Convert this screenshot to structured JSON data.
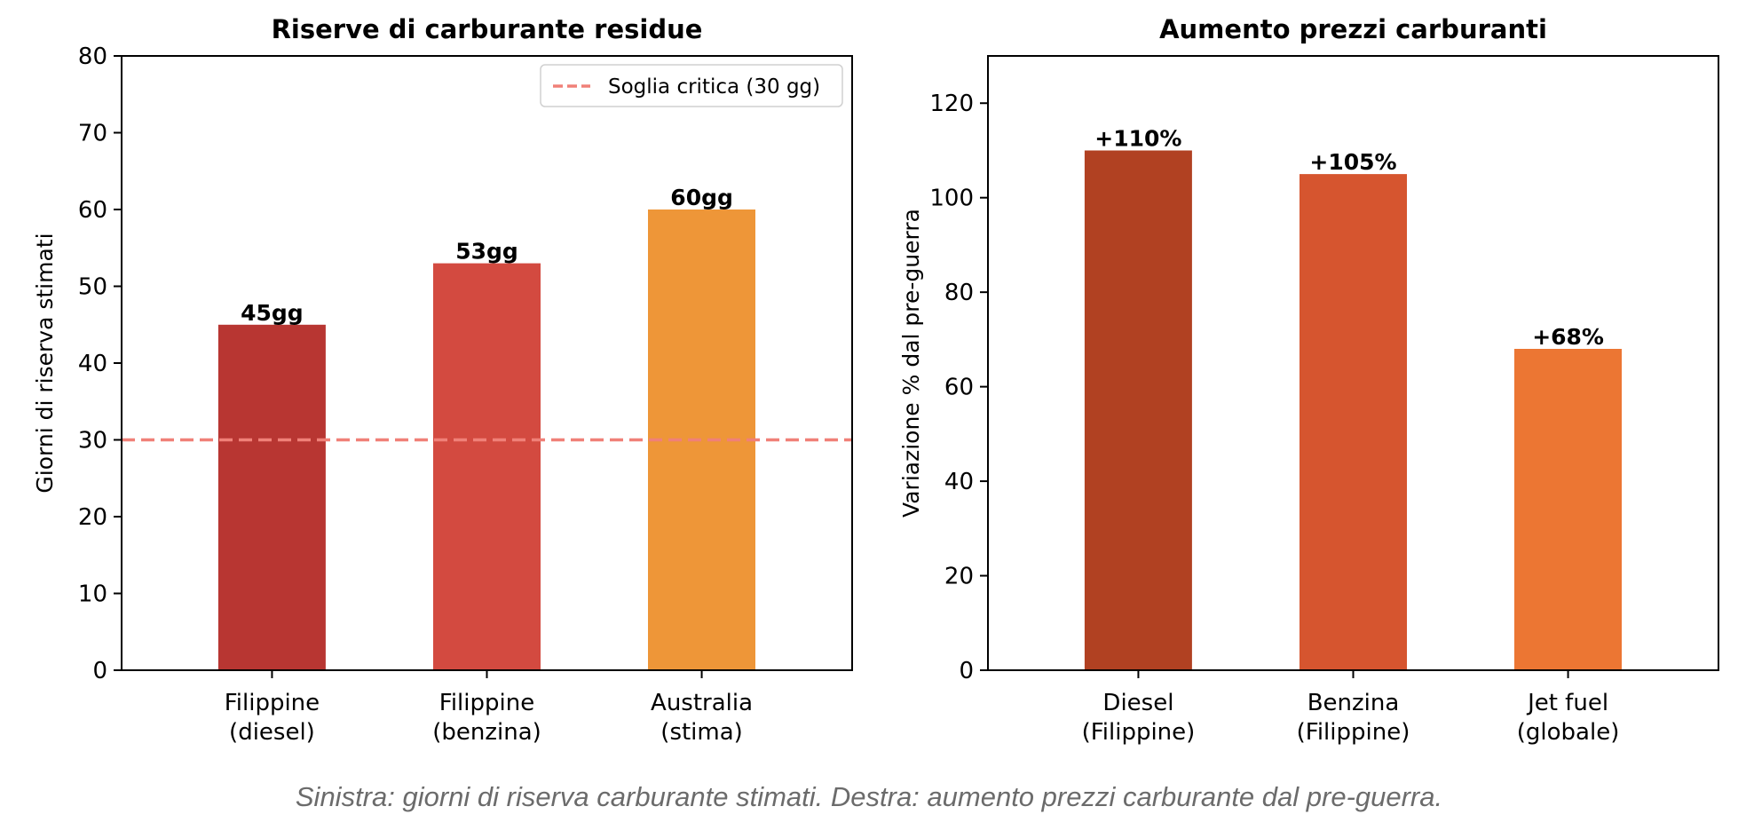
{
  "chart_data": [
    {
      "type": "bar",
      "title": "Riserve di carburante residue",
      "xlabel": "",
      "ylabel": "Giorni di riserva stimati",
      "categories": [
        [
          "Filippine",
          "(diesel)"
        ],
        [
          "Filippine",
          "(benzina)"
        ],
        [
          "Australia",
          "(stima)"
        ]
      ],
      "values": [
        45,
        53,
        60
      ],
      "value_labels": [
        "45gg",
        "53gg",
        "60gg"
      ],
      "colors": [
        "#b83632",
        "#d34a40",
        "#ee9638"
      ],
      "ylim": [
        0,
        80
      ],
      "yticks": [
        0,
        10,
        20,
        30,
        40,
        50,
        60,
        70,
        80
      ],
      "reference_line": {
        "value": 30,
        "label": "Soglia critica (30 gg)",
        "color": "#f08078",
        "style": "dashed"
      },
      "legend": {
        "position": "top-right",
        "entries": [
          "Soglia critica (30 gg)"
        ]
      },
      "grid": false
    },
    {
      "type": "bar",
      "title": "Aumento prezzi carburanti",
      "xlabel": "",
      "ylabel": "Variazione % dal pre-guerra",
      "categories": [
        [
          "Diesel",
          "(Filippine)"
        ],
        [
          "Benzina",
          "(Filippine)"
        ],
        [
          "Jet fuel",
          "(globale)"
        ]
      ],
      "values": [
        110,
        105,
        68
      ],
      "value_labels": [
        "+110%",
        "+105%",
        "+68%"
      ],
      "colors": [
        "#b14122",
        "#d6552f",
        "#ec7633"
      ],
      "ylim": [
        0,
        130
      ],
      "yticks": [
        0,
        20,
        40,
        60,
        80,
        100,
        120
      ],
      "grid": false
    }
  ],
  "caption": "Sinistra: giorni di riserva carburante stimati. Destra: aumento prezzi carburante dal pre-guerra."
}
